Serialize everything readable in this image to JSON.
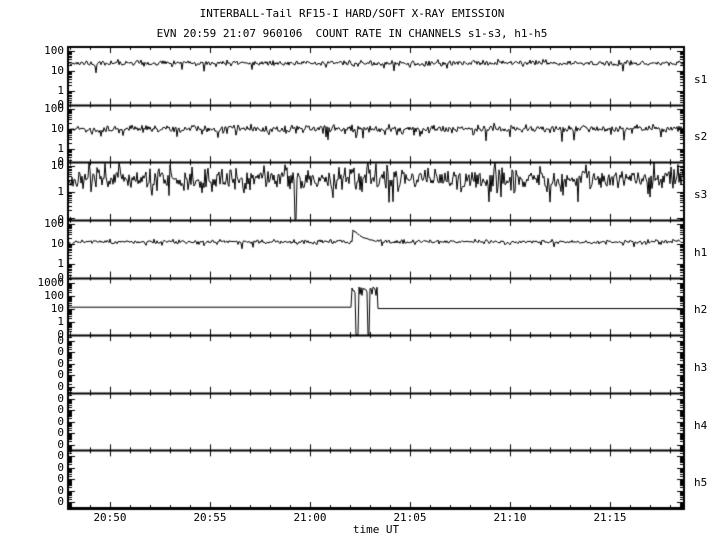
{
  "colors": {
    "foreground": "#000000",
    "background": "#ffffff"
  },
  "chart_data": {
    "type": "line",
    "title": "INTERBALL-Tail RF15-I HARD/SOFT X-RAY EMISSION",
    "subtitle": "EVN 20:59 21:07 960106  COUNT RATE IN CHANNELS s1-s3, h1-h5",
    "xlabel": "time UT",
    "grid": false,
    "legend": "none",
    "x_axis": {
      "units": "minutes after 20:00 UT",
      "start": 47.9,
      "end": 78.7,
      "minor_step": 1,
      "major_ticks": [
        {
          "m": 50,
          "label": "20:50"
        },
        {
          "m": 55,
          "label": "20:55"
        },
        {
          "m": 60,
          "label": "21:00"
        },
        {
          "m": 65,
          "label": "21:05"
        },
        {
          "m": 70,
          "label": "21:10"
        },
        {
          "m": 75,
          "label": "21:15"
        }
      ]
    },
    "panels": [
      {
        "id": "s1",
        "label": "s1",
        "scale": "log",
        "y_top_exp": 2.2,
        "y_bottom_exp": -0.65,
        "yticks": [
          {
            "exp": 2,
            "label": "100"
          },
          {
            "exp": 1,
            "label": "10"
          },
          {
            "exp": 0,
            "label": "1"
          },
          {
            "bottom": true,
            "label": "0"
          }
        ],
        "series": {
          "kind": "noisy",
          "baseline": 25,
          "sigma_dex": 0.07,
          "dip_prob": 0.02,
          "dip_dex": 0.3,
          "seed": 11,
          "events": []
        }
      },
      {
        "id": "s2",
        "label": "s2",
        "scale": "log",
        "y_top_exp": 2.2,
        "y_bottom_exp": -0.65,
        "yticks": [
          {
            "exp": 2,
            "label": "100"
          },
          {
            "exp": 1,
            "label": "10"
          },
          {
            "exp": 0,
            "label": "1"
          },
          {
            "bottom": true,
            "label": "0"
          }
        ],
        "series": {
          "kind": "noisy",
          "baseline": 10,
          "sigma_dex": 0.09,
          "dip_prob": 0.05,
          "dip_dex": 0.3,
          "seed": 22,
          "events": []
        }
      },
      {
        "id": "s3",
        "label": "s3",
        "scale": "log",
        "y_top_exp": 1.15,
        "y_bottom_exp": -1.07,
        "yticks": [
          {
            "exp": 1,
            "label": "10"
          },
          {
            "exp": 0,
            "label": "1"
          },
          {
            "bottom": true,
            "label": "0"
          }
        ],
        "series": {
          "kind": "noisy",
          "baseline": 3.2,
          "sigma_dex": 0.22,
          "dip_prob": 0.05,
          "dip_dex": 0.45,
          "seed": 33,
          "events": [
            {
              "type": "down_spike",
              "t": 59.3,
              "value": 0.09
            }
          ]
        }
      },
      {
        "id": "h1",
        "label": "h1",
        "scale": "log",
        "y_top_exp": 2.2,
        "y_bottom_exp": -0.65,
        "yticks": [
          {
            "exp": 2,
            "label": "100"
          },
          {
            "exp": 1,
            "label": "10"
          },
          {
            "exp": 0,
            "label": "1"
          },
          {
            "bottom": true,
            "label": "0"
          }
        ],
        "series": {
          "kind": "noisy",
          "baseline": 13,
          "sigma_dex": 0.05,
          "dip_prob": 0.02,
          "dip_dex": 0.2,
          "seed": 44,
          "events": [
            {
              "type": "flare",
              "start": 62.15,
              "peak": 38,
              "decay_min": 0.35,
              "end": 64.0
            }
          ]
        }
      },
      {
        "id": "h2",
        "label": "h2",
        "scale": "log",
        "y_top_exp": 3.43,
        "y_bottom_exp": -1.0,
        "yticks": [
          {
            "exp": 3,
            "label": "1000"
          },
          {
            "exp": 2,
            "label": "100"
          },
          {
            "exp": 1,
            "label": "10"
          },
          {
            "exp": 0,
            "label": "1"
          },
          {
            "bottom": true,
            "label": "0"
          }
        ],
        "series": {
          "kind": "flat_burst",
          "level_before": 14,
          "level_after": 11,
          "burst_start": 62.1,
          "burst_end": 63.35,
          "burst_level": 260,
          "burst_sigma_dex": 0.27,
          "gaps": [
            [
              62.26,
              62.42
            ],
            [
              62.9,
              62.97
            ]
          ],
          "seed": 55
        }
      },
      {
        "id": "h3",
        "label": "h3",
        "scale": "log",
        "empty": true,
        "y_top_exp": 4.5,
        "y_bottom_exp": -0.5,
        "zero_labels": 5,
        "zero_label_text": "0",
        "series": {
          "kind": "none"
        }
      },
      {
        "id": "h4",
        "label": "h4",
        "scale": "log",
        "empty": true,
        "y_top_exp": 4.5,
        "y_bottom_exp": -0.5,
        "zero_labels": 5,
        "zero_label_text": "0",
        "series": {
          "kind": "none"
        }
      },
      {
        "id": "h5",
        "label": "h5",
        "scale": "log",
        "empty": true,
        "y_top_exp": 4.5,
        "y_bottom_exp": -0.5,
        "zero_labels": 5,
        "zero_label_text": "0",
        "series": {
          "kind": "none"
        }
      }
    ]
  }
}
